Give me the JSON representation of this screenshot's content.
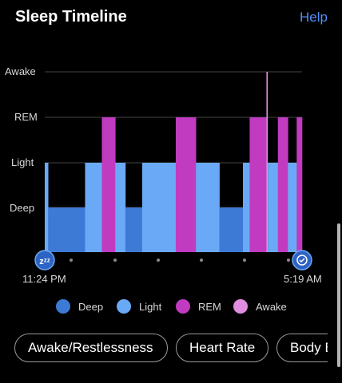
{
  "header": {
    "title": "Sleep Timeline",
    "help_label": "Help"
  },
  "chart_data": {
    "type": "area",
    "title": "",
    "stages": [
      "Deep",
      "Light",
      "REM",
      "Awake"
    ],
    "start_time": "11:24 PM",
    "end_time": "5:19 AM",
    "segments": [
      {
        "stage": "Light",
        "duration": 1
      },
      {
        "stage": "Deep",
        "duration": 11
      },
      {
        "stage": "Light",
        "duration": 5
      },
      {
        "stage": "REM",
        "duration": 4
      },
      {
        "stage": "Light",
        "duration": 3
      },
      {
        "stage": "Deep",
        "duration": 5
      },
      {
        "stage": "Light",
        "duration": 10
      },
      {
        "stage": "REM",
        "duration": 6
      },
      {
        "stage": "Light",
        "duration": 7
      },
      {
        "stage": "Deep",
        "duration": 7
      },
      {
        "stage": "Light",
        "duration": 2
      },
      {
        "stage": "REM",
        "duration": 5
      },
      {
        "stage": "Awake",
        "duration": 0.4
      },
      {
        "stage": "Light",
        "duration": 3
      },
      {
        "stage": "REM",
        "duration": 3
      },
      {
        "stage": "Light",
        "duration": 2.6
      },
      {
        "stage": "REM",
        "duration": 1.6
      }
    ]
  },
  "colors": {
    "deep": "#3d7ad6",
    "light": "#6aa9f5",
    "rem": "#c03bc0",
    "awake": "#e28ee0"
  },
  "legend": [
    {
      "label": "Deep",
      "color": "#3d7ad6"
    },
    {
      "label": "Light",
      "color": "#6aa9f5"
    },
    {
      "label": "REM",
      "color": "#c03bc0"
    },
    {
      "label": "Awake",
      "color": "#e28ee0"
    }
  ],
  "icons": {
    "start": "sleep-zzz-icon",
    "end": "alarm-clock-icon"
  },
  "pills": [
    "Awake/Restlessness",
    "Heart Rate",
    "Body Battery"
  ]
}
